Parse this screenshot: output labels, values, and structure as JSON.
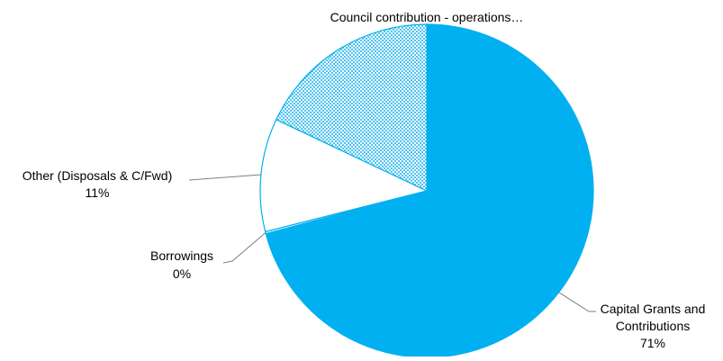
{
  "chart_data": {
    "type": "pie",
    "title": "",
    "slices": [
      {
        "label": "Capital Grants and Contributions",
        "label_lines": [
          "Capital Grants and",
          "Contributions"
        ],
        "value_label": "71%",
        "value": 71,
        "fill": "#00b0f0",
        "pattern": "solid"
      },
      {
        "label": "Borrowings",
        "label_lines": [
          "Borrowings"
        ],
        "value_label": "0%",
        "value": 0.2,
        "fill": "#ffffff",
        "pattern": "solid"
      },
      {
        "label": "Other (Disposals & C/Fwd)",
        "label_lines": [
          "Other (Disposals & C/Fwd)"
        ],
        "value_label": "11%",
        "value": 11,
        "fill": "#ffffff",
        "pattern": "solid"
      },
      {
        "label": "Council contribution - operations…",
        "label_lines": [
          "Council contribution - operations…"
        ],
        "value_label": "",
        "value": 18,
        "fill": "#00b0f0",
        "pattern": "checker"
      }
    ],
    "colors": {
      "accent": "#00b0f0",
      "stroke": "#00b0f0",
      "leader": "#7f7f7f"
    }
  }
}
